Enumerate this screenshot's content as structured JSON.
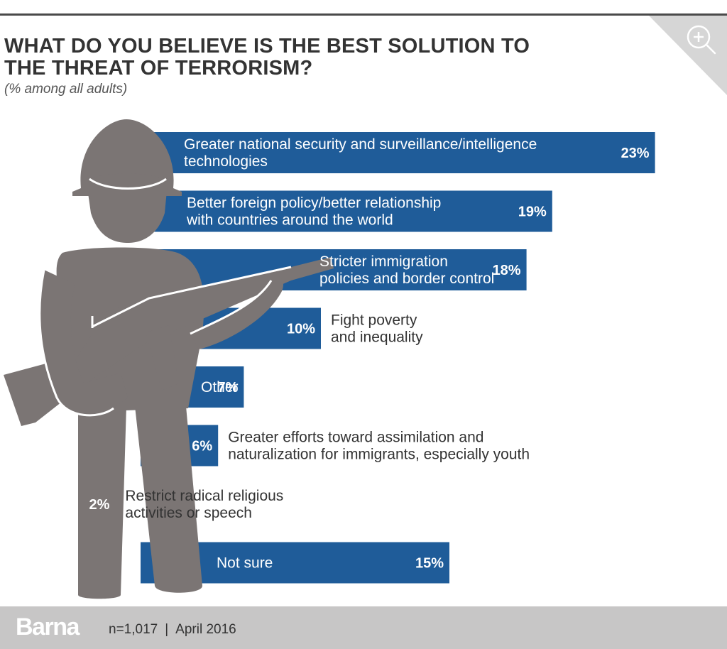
{
  "header": {
    "title": "WHAT DO YOU BELIEVE IS THE BEST SOLUTION TO THE THREAT OF TERRORISM?",
    "subtitle": "(% among all adults)"
  },
  "chart_data": {
    "type": "bar",
    "orientation": "horizontal",
    "unit": "%",
    "categories": [
      [
        "Greater national security and surveillance/intelligence",
        "technologies"
      ],
      [
        "Better foreign policy/better relationship",
        "with countries around the world"
      ],
      [
        "Stricter immigration",
        "policies and border control"
      ],
      [
        "Fight poverty",
        "and inequality"
      ],
      [
        "Other"
      ],
      [
        "Greater efforts toward assimilation and",
        "naturalization for immigrants, especially youth"
      ],
      [
        "Restrict radical religious",
        "activities or speech"
      ],
      [
        "Not sure"
      ]
    ],
    "values": [
      23,
      19,
      18,
      10,
      7,
      6,
      2,
      15
    ],
    "value_labels": [
      "23%",
      "19%",
      "18%",
      "10%",
      "7%",
      "6%",
      "2%",
      "15%"
    ],
    "label_positions": [
      "inside",
      "inside",
      "inside",
      "outside",
      "inside",
      "outside",
      "outside",
      "inside"
    ],
    "bar_color": "#1f5c99",
    "silhouette_color": "#7b7574"
  },
  "footer": {
    "brand": "Barna",
    "sample": "n=1,017",
    "separator": "|",
    "date": "April 2016"
  },
  "colors": {
    "title": "#333333",
    "footer_bg": "#c7c6c6",
    "corner": "#d6d6d6"
  },
  "icons": {
    "corner": "zoom-in-icon",
    "figure": "soldier-silhouette"
  }
}
